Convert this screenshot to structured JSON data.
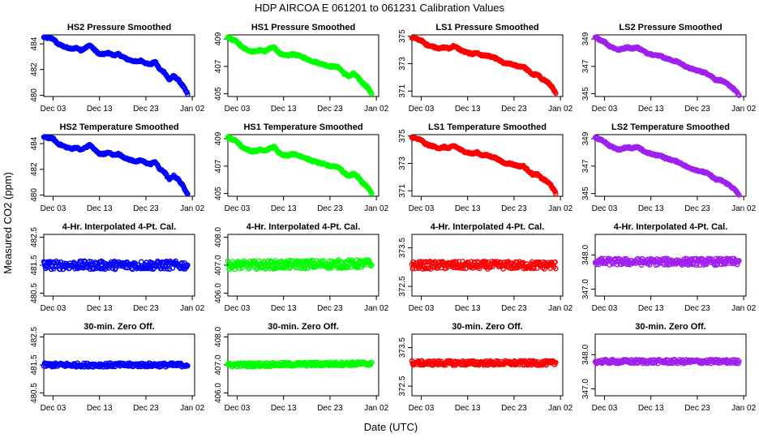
{
  "figure": {
    "title": "HDP    AIRCOA E    061201 to 061231    Calibration Values",
    "xlabel": "Date (UTC)",
    "ylabel": "Measured CO2 (ppm)"
  },
  "x_axis": {
    "domain": [
      0,
      32.5
    ],
    "ticks": [
      {
        "value": 2,
        "label": "Dec 03"
      },
      {
        "value": 12,
        "label": "Dec 13"
      },
      {
        "value": 22,
        "label": "Dec 23"
      },
      {
        "value": 32,
        "label": "Jan 02"
      }
    ]
  },
  "chart_data": [
    {
      "type": "scatter",
      "title": "HS2 Pressure Smoothed",
      "color": "#0000ff",
      "ylim": [
        479.9,
        484.7
      ],
      "yticks": [
        {
          "value": 480,
          "label": "480"
        },
        {
          "value": 482,
          "label": "482"
        },
        {
          "value": 484,
          "label": "484"
        }
      ],
      "x": [
        0,
        2,
        3,
        5,
        6,
        7,
        8,
        9,
        10,
        11,
        12,
        13,
        14,
        15,
        16,
        18,
        20,
        21,
        22,
        23,
        24,
        25,
        26,
        26.5,
        27,
        28,
        29,
        30,
        31
      ],
      "values": [
        484.5,
        484.4,
        484.0,
        483.7,
        483.6,
        483.7,
        483.5,
        483.7,
        483.9,
        483.5,
        483.2,
        483.2,
        483.3,
        483.1,
        483.2,
        482.8,
        482.6,
        482.7,
        482.5,
        482.4,
        482.6,
        482.0,
        481.8,
        481.5,
        481.2,
        481.5,
        481.2,
        480.7,
        480.1
      ]
    },
    {
      "type": "scatter",
      "title": "HS1 Pressure Smoothed",
      "color": "#00ff00",
      "ylim": [
        404.8,
        409.3
      ],
      "yticks": [
        {
          "value": 405,
          "label": "405"
        },
        {
          "value": 407,
          "label": "407"
        },
        {
          "value": 409,
          "label": "409"
        }
      ],
      "x": [
        0,
        2,
        3,
        5,
        6,
        7,
        8,
        9,
        10,
        11,
        12,
        13,
        14,
        15,
        16,
        18,
        20,
        21,
        22,
        23,
        24,
        25,
        26,
        26.5,
        27,
        28,
        29,
        30,
        31
      ],
      "values": [
        409.1,
        408.8,
        408.4,
        408.1,
        408.1,
        408.2,
        408.1,
        408.3,
        408.4,
        408.0,
        407.8,
        407.8,
        407.9,
        407.8,
        407.7,
        407.4,
        407.2,
        407.1,
        407.0,
        407.0,
        406.9,
        406.5,
        406.3,
        406.3,
        406.5,
        406.2,
        405.8,
        405.5,
        405.0
      ]
    },
    {
      "type": "scatter",
      "title": "LS1 Pressure Smoothed",
      "color": "#ff0000",
      "ylim": [
        370.6,
        375.1
      ],
      "yticks": [
        {
          "value": 371,
          "label": "371"
        },
        {
          "value": 373,
          "label": "373"
        },
        {
          "value": 375,
          "label": "375"
        }
      ],
      "x": [
        0,
        2,
        3,
        5,
        6,
        7,
        8,
        9,
        10,
        11,
        12,
        13,
        14,
        15,
        16,
        18,
        20,
        21,
        22,
        23,
        24,
        25,
        26,
        26.5,
        27,
        28,
        29,
        30,
        31
      ],
      "values": [
        374.9,
        374.7,
        374.4,
        374.2,
        374.1,
        374.2,
        374.1,
        374.3,
        374.1,
        373.9,
        373.8,
        373.7,
        373.8,
        373.6,
        373.6,
        373.4,
        373.0,
        373.0,
        372.9,
        372.8,
        372.8,
        372.5,
        372.2,
        372.2,
        372.2,
        371.9,
        371.7,
        371.4,
        370.8
      ]
    },
    {
      "type": "scatter",
      "title": "LS2 Pressure Smoothed",
      "color": "#a020f0",
      "ylim": [
        344.8,
        349.3
      ],
      "yticks": [
        {
          "value": 345,
          "label": "345"
        },
        {
          "value": 347,
          "label": "347"
        },
        {
          "value": 349,
          "label": "349"
        }
      ],
      "x": [
        0,
        2,
        3,
        5,
        6,
        7,
        8,
        9,
        10,
        11,
        12,
        13,
        14,
        15,
        16,
        18,
        20,
        21,
        22,
        23,
        24,
        25,
        26,
        26.5,
        27,
        28,
        29,
        30,
        31
      ],
      "values": [
        349.1,
        348.8,
        348.5,
        348.2,
        348.3,
        348.4,
        348.3,
        348.4,
        348.2,
        348.0,
        347.9,
        347.8,
        347.8,
        347.6,
        347.5,
        347.3,
        346.9,
        346.8,
        346.7,
        346.6,
        346.5,
        346.3,
        346.0,
        346.0,
        346.0,
        345.8,
        345.6,
        345.3,
        344.9
      ]
    },
    {
      "type": "scatter",
      "title": "HS2 Temperature Smoothed",
      "color": "#0000ff",
      "ylim": [
        479.9,
        484.7
      ],
      "yticks": [
        {
          "value": 480,
          "label": "480"
        },
        {
          "value": 482,
          "label": "482"
        },
        {
          "value": 484,
          "label": "484"
        }
      ],
      "x": [
        0,
        2,
        3,
        5,
        6,
        7,
        8,
        9,
        10,
        11,
        12,
        13,
        14,
        15,
        16,
        18,
        20,
        21,
        22,
        23,
        24,
        25,
        26,
        26.5,
        27,
        28,
        29,
        30,
        31
      ],
      "values": [
        484.5,
        484.4,
        484.0,
        483.7,
        483.6,
        483.7,
        483.5,
        483.7,
        483.9,
        483.5,
        483.2,
        483.2,
        483.3,
        483.1,
        483.2,
        482.8,
        482.6,
        482.7,
        482.5,
        482.4,
        482.6,
        482.0,
        481.8,
        481.5,
        481.2,
        481.5,
        481.2,
        480.7,
        480.1
      ]
    },
    {
      "type": "scatter",
      "title": "HS1 Temperature Smoothed",
      "color": "#00ff00",
      "ylim": [
        404.8,
        409.3
      ],
      "yticks": [
        {
          "value": 405,
          "label": "405"
        },
        {
          "value": 407,
          "label": "407"
        },
        {
          "value": 409,
          "label": "409"
        }
      ],
      "x": [
        0,
        2,
        3,
        5,
        6,
        7,
        8,
        9,
        10,
        11,
        12,
        13,
        14,
        15,
        16,
        18,
        20,
        21,
        22,
        23,
        24,
        25,
        26,
        26.5,
        27,
        28,
        29,
        30,
        31
      ],
      "values": [
        409.1,
        408.8,
        408.4,
        408.1,
        408.1,
        408.2,
        408.1,
        408.3,
        408.4,
        408.0,
        407.8,
        407.8,
        407.9,
        407.8,
        407.7,
        407.4,
        407.2,
        407.1,
        407.0,
        407.0,
        406.9,
        406.5,
        406.3,
        406.3,
        406.5,
        406.2,
        405.8,
        405.5,
        405.0
      ]
    },
    {
      "type": "scatter",
      "title": "LS1 Temperature Smoothed",
      "color": "#ff0000",
      "ylim": [
        370.6,
        375.1
      ],
      "yticks": [
        {
          "value": 371,
          "label": "371"
        },
        {
          "value": 373,
          "label": "373"
        },
        {
          "value": 375,
          "label": "375"
        }
      ],
      "x": [
        0,
        2,
        3,
        5,
        6,
        7,
        8,
        9,
        10,
        11,
        12,
        13,
        14,
        15,
        16,
        18,
        20,
        21,
        22,
        23,
        24,
        25,
        26,
        26.5,
        27,
        28,
        29,
        30,
        31
      ],
      "values": [
        374.9,
        374.7,
        374.4,
        374.2,
        374.1,
        374.2,
        374.1,
        374.3,
        374.1,
        373.9,
        373.8,
        373.7,
        373.8,
        373.6,
        373.6,
        373.4,
        373.0,
        373.0,
        372.9,
        372.8,
        372.8,
        372.5,
        372.2,
        372.2,
        372.2,
        371.9,
        371.7,
        371.4,
        370.8
      ]
    },
    {
      "type": "scatter",
      "title": "LS2 Temperature Smoothed",
      "color": "#a020f0",
      "ylim": [
        344.8,
        349.3
      ],
      "yticks": [
        {
          "value": 345,
          "label": "345"
        },
        {
          "value": 347,
          "label": "347"
        },
        {
          "value": 349,
          "label": "349"
        }
      ],
      "x": [
        0,
        2,
        3,
        5,
        6,
        7,
        8,
        9,
        10,
        11,
        12,
        13,
        14,
        15,
        16,
        18,
        20,
        21,
        22,
        23,
        24,
        25,
        26,
        26.5,
        27,
        28,
        29,
        30,
        31
      ],
      "values": [
        349.1,
        348.8,
        348.5,
        348.2,
        348.3,
        348.4,
        348.3,
        348.4,
        348.2,
        348.0,
        347.9,
        347.8,
        347.8,
        347.6,
        347.5,
        347.3,
        346.9,
        346.8,
        346.7,
        346.6,
        346.5,
        346.3,
        346.0,
        346.0,
        346.0,
        345.8,
        345.6,
        345.3,
        344.9
      ]
    },
    {
      "type": "scatter",
      "title": "4-Hr. Interpolated 4-Pt. Cal.",
      "color": "#0000ff",
      "ylim": [
        480.4,
        482.6
      ],
      "yticks": [
        {
          "value": 480.5,
          "label": "480.5"
        },
        {
          "value": 481.5,
          "label": "481.5"
        },
        {
          "value": 482.5,
          "label": "482.5"
        }
      ],
      "x": [
        0,
        31
      ],
      "values": [
        481.5,
        481.5
      ],
      "scatter_amplitude": 0.15
    },
    {
      "type": "scatter",
      "title": "4-Hr. Interpolated 4-Pt. Cal.",
      "color": "#00ff00",
      "ylim": [
        405.9,
        408.1
      ],
      "yticks": [
        {
          "value": 406.0,
          "label": "406.0"
        },
        {
          "value": 407.0,
          "label": "407.0"
        },
        {
          "value": 408.0,
          "label": "408.0"
        }
      ],
      "x": [
        0,
        31
      ],
      "values": [
        407.0,
        407.05
      ],
      "scatter_amplitude": 0.15
    },
    {
      "type": "scatter",
      "title": "4-Hr. Interpolated 4-Pt. Cal.",
      "color": "#ff0000",
      "ylim": [
        372.25,
        373.85
      ],
      "yticks": [
        {
          "value": 372.5,
          "label": "372.5"
        },
        {
          "value": 373.5,
          "label": "373.5"
        }
      ],
      "x": [
        0,
        31
      ],
      "values": [
        373.05,
        373.05
      ],
      "scatter_amplitude": 0.1
    },
    {
      "type": "scatter",
      "title": "4-Hr. Interpolated 4-Pt. Cal.",
      "color": "#a020f0",
      "ylim": [
        346.8,
        348.6
      ],
      "yticks": [
        {
          "value": 347.0,
          "label": "347.0"
        },
        {
          "value": 348.0,
          "label": "348.0"
        }
      ],
      "x": [
        0,
        31
      ],
      "values": [
        347.8,
        347.8
      ],
      "scatter_amplitude": 0.1
    },
    {
      "type": "scatter",
      "title": "30-min. Zero Off.",
      "color": "#0000ff",
      "ylim": [
        480.4,
        482.6
      ],
      "yticks": [
        {
          "value": 480.5,
          "label": "480.5"
        },
        {
          "value": 481.5,
          "label": "481.5"
        },
        {
          "value": 482.5,
          "label": "482.5"
        }
      ],
      "x": [
        0,
        31
      ],
      "values": [
        481.5,
        481.5
      ],
      "scatter_amplitude": 0.07
    },
    {
      "type": "scatter",
      "title": "30-min. Zero Off.",
      "color": "#00ff00",
      "ylim": [
        405.9,
        408.1
      ],
      "yticks": [
        {
          "value": 406.0,
          "label": "406.0"
        },
        {
          "value": 407.0,
          "label": "407.0"
        },
        {
          "value": 408.0,
          "label": "408.0"
        }
      ],
      "x": [
        0,
        31
      ],
      "values": [
        407.0,
        407.05
      ],
      "scatter_amplitude": 0.07
    },
    {
      "type": "scatter",
      "title": "30-min. Zero Off.",
      "color": "#ff0000",
      "ylim": [
        372.25,
        373.85
      ],
      "yticks": [
        {
          "value": 372.5,
          "label": "372.5"
        },
        {
          "value": 373.5,
          "label": "373.5"
        }
      ],
      "x": [
        0,
        31
      ],
      "values": [
        373.1,
        373.1
      ],
      "scatter_amplitude": 0.06
    },
    {
      "type": "scatter",
      "title": "30-min. Zero Off.",
      "color": "#a020f0",
      "ylim": [
        346.8,
        348.6
      ],
      "yticks": [
        {
          "value": 347.0,
          "label": "347.0"
        },
        {
          "value": 348.0,
          "label": "348.0"
        }
      ],
      "x": [
        0,
        31
      ],
      "values": [
        347.8,
        347.8
      ],
      "scatter_amplitude": 0.06
    }
  ]
}
